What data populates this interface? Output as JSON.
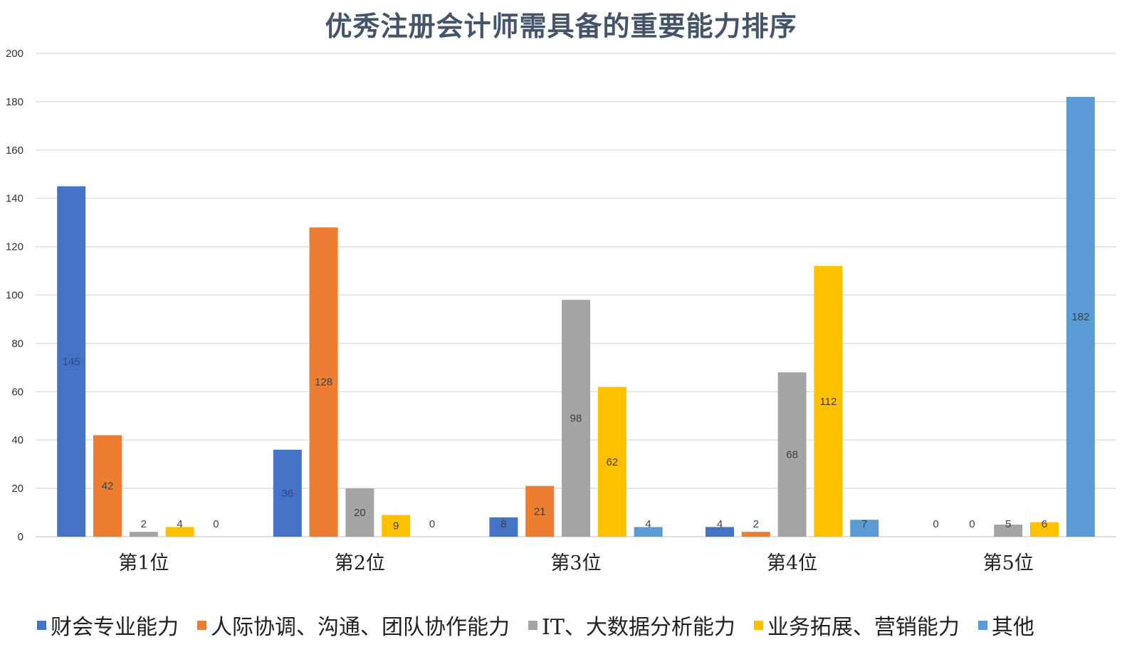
{
  "chart_data": {
    "type": "bar",
    "title": "优秀注册会计师需具备的重要能力排序",
    "categories": [
      "第1位",
      "第2位",
      "第3位",
      "第4位",
      "第5位"
    ],
    "ylim": [
      0,
      200
    ],
    "yticks": [
      0,
      20,
      40,
      60,
      80,
      100,
      120,
      140,
      160,
      180,
      200
    ],
    "grid": true,
    "legend_position": "bottom",
    "data_labels": true,
    "series": [
      {
        "name": "财会专业能力",
        "color": "#4472c4",
        "values": [
          145,
          36,
          8,
          4,
          0
        ]
      },
      {
        "name": "人际协调、沟通、团队协作能力",
        "color": "#ed7d31",
        "values": [
          42,
          128,
          21,
          2,
          0
        ]
      },
      {
        "name": "IT、大数据分析能力",
        "color": "#a5a5a5",
        "values": [
          2,
          20,
          98,
          68,
          5
        ]
      },
      {
        "name": "业务拓展、营销能力",
        "color": "#ffc000",
        "values": [
          4,
          9,
          62,
          112,
          6
        ]
      },
      {
        "name": "其他",
        "color": "#5b9bd5",
        "values": [
          0,
          0,
          4,
          7,
          182
        ]
      }
    ]
  }
}
